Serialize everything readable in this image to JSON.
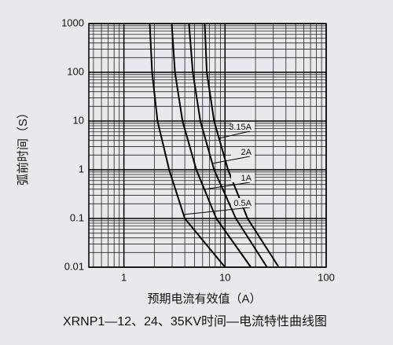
{
  "chart_data": {
    "type": "line",
    "title": "XRNP1—12、24、35KV时间—电流特性曲线图",
    "x_label": "预期电流有效值（A）",
    "y_label": "弧前时间（S）",
    "log_x": true,
    "log_y": true,
    "grid": true,
    "xlim": [
      0.45,
      100
    ],
    "xticks": [
      1,
      10,
      100
    ],
    "ylim": [
      0.01,
      1000
    ],
    "yticks": [
      0.01,
      0.1,
      1,
      10,
      100,
      1000
    ],
    "series": [
      {
        "name": "3.15A",
        "color": "#000000",
        "x": [
          6.3,
          6.6,
          7.8,
          10.7,
          16.7,
          34
        ],
        "values": [
          1000,
          100,
          10,
          1,
          0.1,
          0.01
        ]
      },
      {
        "name": "2A",
        "color": "#000000",
        "x": [
          4.4,
          4.8,
          5.7,
          7.8,
          12.8,
          26
        ],
        "values": [
          1000,
          100,
          10,
          1,
          0.1,
          0.01
        ]
      },
      {
        "name": "1A",
        "color": "#000000",
        "x": [
          2.97,
          3.2,
          3.8,
          5.2,
          8.2,
          18
        ],
        "values": [
          1000,
          100,
          10,
          1,
          0.1,
          0.01
        ]
      },
      {
        "name": "0.5A",
        "color": "#000000",
        "x": [
          1.8,
          1.9,
          2.15,
          2.8,
          4.0,
          10
        ],
        "values": [
          1000,
          100,
          10,
          1,
          0.1,
          0.01
        ]
      }
    ]
  }
}
